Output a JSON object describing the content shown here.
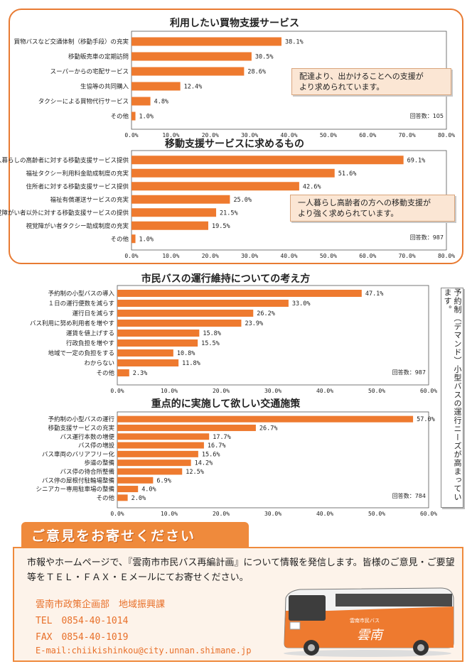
{
  "charts": [
    {
      "id": "shopping",
      "title": "利用したい買物支援サービス",
      "responses": "回答数：105",
      "ticks": [
        "0.0%",
        "10.0%",
        "20.0%",
        "30.0%",
        "40.0%",
        "50.0%",
        "60.0%",
        "70.0%",
        "80.0%"
      ],
      "callout": [
        "配達より、出かけることへの支援が",
        "より求められています。"
      ],
      "categories": [
        "買物バスなど交通体制（移動手段）の充実",
        "移動販売車の定期訪問",
        "スーパーからの宅配サービス",
        "生協等の共同購入",
        "タクシーによる買物代行サービス",
        "その他"
      ],
      "labels": [
        "38.1%",
        "30.5%",
        "28.6%",
        "12.4%",
        "4.8%",
        "1.0%"
      ]
    },
    {
      "id": "mobility",
      "title": "移動支援サービスに求めるもの",
      "responses": "回答数：987",
      "ticks": [
        "0.0%",
        "10.0%",
        "20.0%",
        "30.0%",
        "40.0%",
        "50.0%",
        "60.0%",
        "70.0%",
        "80.0%"
      ],
      "callout": [
        "一人暮らし高齢者の方への移動支援が",
        "より強く求められています。"
      ],
      "categories": [
        "一人暮らしの高齢者に対する移動支援サービス提供",
        "福祉タクシー利用料金助成制度の充実",
        "住所者に対する移動支援サービス提供",
        "福祉有償運送サービスの充実",
        "視覚障がい者以外に対する移動支援サービスの提供",
        "視覚障がい者タクシー助成制度の充実",
        "その他"
      ],
      "labels": [
        "69.1%",
        "51.6%",
        "42.6%",
        "25.0%",
        "21.5%",
        "19.5%",
        "1.0%"
      ]
    },
    {
      "id": "bus_maintenance",
      "title": "市民バスの運行維持についての考え方",
      "responses": "回答数：987",
      "ticks": [
        "0.0%",
        "10.0%",
        "20.0%",
        "30.0%",
        "40.0%",
        "50.0%",
        "60.0%"
      ],
      "categories": [
        "予約制の小型バスの導入",
        "１日の運行便数を減らす",
        "運行日を減らす",
        "バス利用に努め利用者を増やす",
        "運賃を値上げする",
        "行政負担を増やす",
        "地域で一定の負担をする",
        "わからない",
        "その他"
      ],
      "labels": [
        "47.1%",
        "33.0%",
        "26.2%",
        "23.9%",
        "15.8%",
        "15.5%",
        "10.8%",
        "11.8%",
        "2.3%"
      ]
    },
    {
      "id": "priority_policy",
      "title": "重点的に実施して欲しい交通施策",
      "responses": "回答数：784",
      "ticks": [
        "0.0%",
        "10.0%",
        "20.0%",
        "30.0%",
        "40.0%",
        "50.0%",
        "60.0%"
      ],
      "categories": [
        "予約制の小型バスの運行",
        "移動支援サービスの充実",
        "バス運行本数の増便",
        "バス停の増設",
        "バス車両のバリアフリー化",
        "歩道の整備",
        "バス停の待合所整備",
        "バス停の屋根付駐輪場整備",
        "シニアカー専用駐車場の整備",
        "その他"
      ],
      "labels": [
        "57.0%",
        "26.7%",
        "17.7%",
        "16.7%",
        "15.6%",
        "14.2%",
        "12.5%",
        "6.9%",
        "4.0%",
        "2.0%"
      ]
    }
  ],
  "chart_data": [
    {
      "type": "bar",
      "orientation": "horizontal",
      "title": "利用したい買物支援サービス",
      "categories": [
        "買物バスなど交通体制（移動手段）の充実",
        "移動販売車の定期訪問",
        "スーパーからの宅配サービス",
        "生協等の共同購入",
        "タクシーによる買物代行サービス",
        "その他"
      ],
      "values": [
        38.1,
        30.5,
        28.6,
        12.4,
        4.8,
        1.0
      ],
      "xlim": [
        0,
        80
      ],
      "unit": "%",
      "grid": false
    },
    {
      "type": "bar",
      "orientation": "horizontal",
      "title": "移動支援サービスに求めるもの",
      "categories": [
        "一人暮らしの高齢者に対する移動支援サービス提供",
        "福祉タクシー利用料金助成制度の充実",
        "住所者に対する移動支援サービス提供",
        "福祉有償運送サービスの充実",
        "視覚障がい者以外に対する移動支援サービスの提供",
        "視覚障がい者タクシー助成制度の充実",
        "その他"
      ],
      "values": [
        69.1,
        51.6,
        42.6,
        25.0,
        21.5,
        19.5,
        1.0
      ],
      "xlim": [
        0,
        80
      ],
      "unit": "%",
      "grid": false
    },
    {
      "type": "bar",
      "orientation": "horizontal",
      "title": "市民バスの運行維持についての考え方",
      "categories": [
        "予約制の小型バスの導入",
        "１日の運行便数を減らす",
        "運行日を減らす",
        "バス利用に努め利用者を増やす",
        "運賃を値上げする",
        "行政負担を増やす",
        "地域で一定の負担をする",
        "わからない",
        "その他"
      ],
      "values": [
        47.1,
        33.0,
        26.2,
        23.9,
        15.8,
        15.5,
        10.8,
        11.8,
        2.3
      ],
      "xlim": [
        0,
        60
      ],
      "unit": "%",
      "grid": false
    },
    {
      "type": "bar",
      "orientation": "horizontal",
      "title": "重点的に実施して欲しい交通施策",
      "categories": [
        "予約制の小型バスの運行",
        "移動支援サービスの充実",
        "バス運行本数の増便",
        "バス停の増設",
        "バス車両のバリアフリー化",
        "歩道の整備",
        "バス停の待合所整備",
        "バス停の屋根付駐輪場整備",
        "シニアカー専用駐車場の整備",
        "その他"
      ],
      "values": [
        57.0,
        26.7,
        17.7,
        16.7,
        15.6,
        14.2,
        12.5,
        6.9,
        4.0,
        2.0
      ],
      "xlim": [
        0,
        60
      ],
      "unit": "%",
      "grid": false
    }
  ],
  "sidebar_note": "予約制（デマンド）小型バスの運行ニーズが高まっています。",
  "opinion": {
    "header": "ご意見をお寄せください",
    "body": "市報やホームページで、『雲南市市民バス再編計画』について情報を発信します。皆様のご意見・ご要望等をＴＥＬ・ＦＡＸ・Ｅメールにてお寄せください。",
    "department": "雲南市政策企画部　地域振興課",
    "tel": "TEL　0854-40-1014",
    "fax": "FAX　0854-40-1019",
    "email": "E-mail:chiikishinkou@city.unnan.shimane.jp"
  },
  "bus_signage": {
    "route": "雲南市民バス",
    "logo": "雲南"
  },
  "colors": {
    "bar": "#ee7a2f",
    "border": "#e87b33",
    "callout_bg": "#fbe6d4",
    "contact": "#e8702a"
  }
}
